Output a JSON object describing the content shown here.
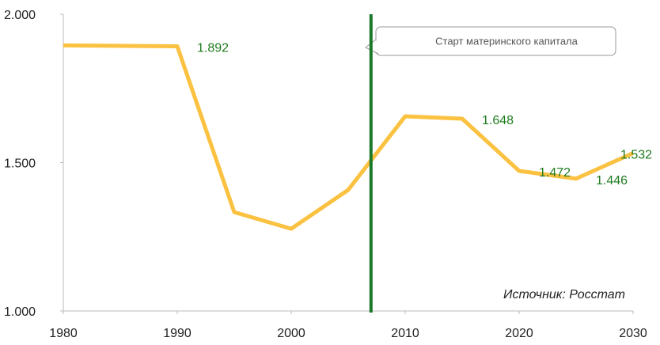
{
  "chart_data": {
    "type": "line",
    "x": [
      1980,
      1990,
      1995,
      2000,
      2005,
      2010,
      2015,
      2020,
      2025,
      2030
    ],
    "values": [
      1.895,
      1.892,
      1.333,
      1.277,
      1.408,
      1.656,
      1.648,
      1.472,
      1.446,
      1.532
    ],
    "value_labels": [
      null,
      "1.892",
      null,
      null,
      null,
      null,
      "1.648",
      "1.472",
      "1.446",
      "1.532"
    ],
    "color": "#fbc140",
    "xlim": [
      1980,
      2030
    ],
    "xticks": [
      1980,
      1990,
      2000,
      2010,
      2020,
      2030
    ],
    "ylim": [
      1,
      2
    ],
    "yticks": [
      {
        "value": 1,
        "label": "1.000"
      },
      {
        "value": 1.5,
        "label": "1.500"
      },
      {
        "value": 2,
        "label": "2.000"
      }
    ],
    "grid": false,
    "marker_line": {
      "x": 2007,
      "color": "#1a7a2a",
      "text": "Старт материнского капитала"
    },
    "source": "Источник: Росстат"
  }
}
